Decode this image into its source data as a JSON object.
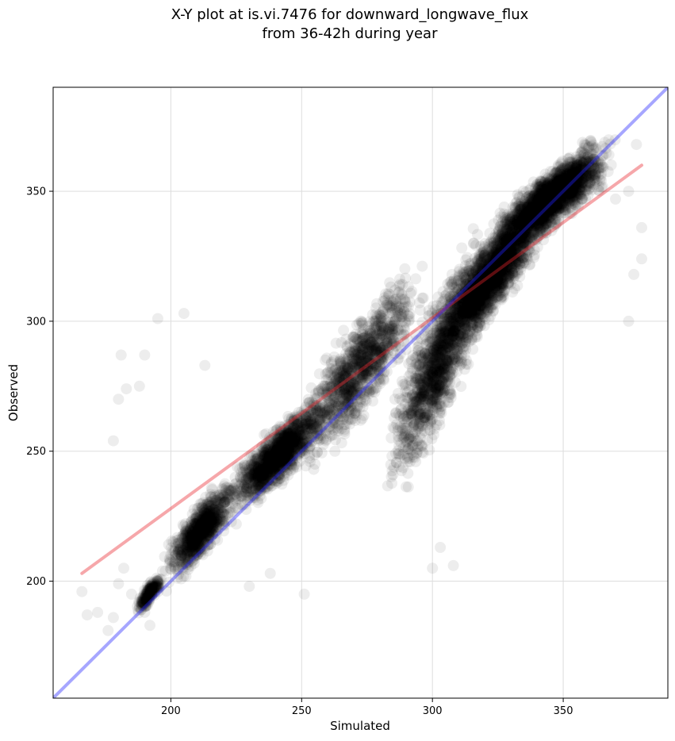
{
  "chart_data": {
    "type": "scatter",
    "title": "X-Y plot at is.vi.7476 for downward_longwave_flux",
    "subtitle": "from 36-42h during year",
    "xlabel": "Simulated",
    "ylabel": "Observed",
    "xlim": [
      155,
      390
    ],
    "ylim": [
      155,
      390
    ],
    "xticks": [
      200,
      250,
      300,
      350
    ],
    "yticks": [
      200,
      250,
      300,
      350
    ],
    "grid": true,
    "point_color": "#000000",
    "point_alpha": 0.07,
    "series": [
      {
        "kind": "point-cloud",
        "summary_points": [
          [
            166,
            196
          ],
          [
            168,
            187
          ],
          [
            172,
            188
          ],
          [
            176,
            181
          ],
          [
            178,
            186
          ],
          [
            180,
            199
          ],
          [
            182,
            205
          ],
          [
            185,
            195
          ],
          [
            188,
            192
          ],
          [
            190,
            188
          ],
          [
            192,
            183
          ],
          [
            195,
            198
          ],
          [
            178,
            254
          ],
          [
            180,
            270
          ],
          [
            181,
            287
          ],
          [
            183,
            274
          ],
          [
            188,
            275
          ],
          [
            190,
            287
          ],
          [
            195,
            301
          ],
          [
            205,
            303
          ],
          [
            213,
            283
          ],
          [
            225,
            222
          ],
          [
            230,
            198
          ],
          [
            238,
            203
          ],
          [
            251,
            195
          ],
          [
            300,
            205
          ],
          [
            303,
            213
          ],
          [
            308,
            206
          ],
          [
            370,
            347
          ],
          [
            375,
            350
          ],
          [
            378,
            368
          ],
          [
            380,
            336
          ],
          [
            380,
            324
          ],
          [
            377,
            318
          ],
          [
            375,
            300
          ]
        ],
        "dense_regions": [
          {
            "x_range": [
              186,
              198
            ],
            "y_range": [
              186,
              205
            ],
            "count": 220
          },
          {
            "x_range": [
              196,
              228
            ],
            "y_range": [
              195,
              245
            ],
            "count": 900
          },
          {
            "x_range": [
              220,
              262
            ],
            "y_range": [
              222,
              275
            ],
            "count": 1400
          },
          {
            "x_range": [
              245,
              300
            ],
            "y_range": [
              235,
              330
            ],
            "count": 1100
          },
          {
            "x_range": [
              280,
              325
            ],
            "y_range": [
              225,
              345
            ],
            "count": 1400
          },
          {
            "x_range": [
              300,
              345
            ],
            "y_range": [
              280,
              355
            ],
            "count": 1900
          },
          {
            "x_range": [
              320,
              372
            ],
            "y_range": [
              320,
              375
            ],
            "count": 2100
          }
        ]
      },
      {
        "name": "",
        "kind": "fit-line",
        "color": "#e8242a",
        "alpha": 0.4,
        "x": [
          166,
          380
        ],
        "y": [
          203,
          360
        ]
      },
      {
        "name": "",
        "kind": "identity-line",
        "color": "#2020ff",
        "alpha": 0.4,
        "x": [
          155,
          390
        ],
        "y": [
          155,
          390
        ]
      }
    ]
  }
}
